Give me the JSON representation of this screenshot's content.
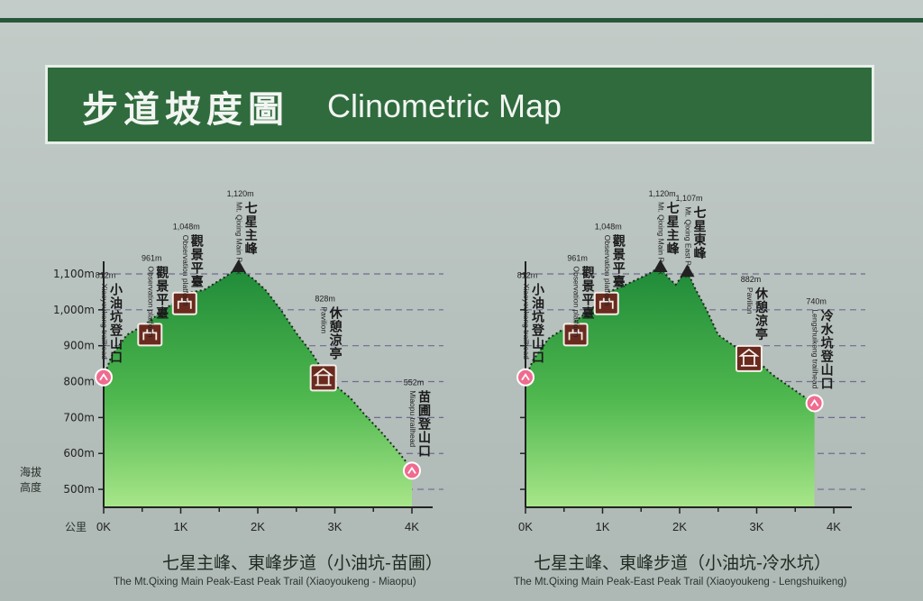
{
  "title": {
    "zh": "步道坡度圖",
    "en": "Clinometric Map"
  },
  "y_axis_title": "海拔高度",
  "x_axis_unit": "公里",
  "chart_data": [
    {
      "type": "area",
      "caption_zh": "七星主峰、東峰步道（小油坑-苗圃）",
      "caption_en": "The Mt.Qixing Main Peak-East Peak Trail (Xiaoyoukeng - Miaopu)",
      "x_tick_labels": [
        "0K",
        "1K",
        "2K",
        "3K",
        "4K"
      ],
      "y_tick_labels": [
        "500m",
        "600m",
        "700m",
        "800m",
        "900m",
        "1,000m",
        "1,100m"
      ],
      "xlim": [
        0,
        4.2
      ],
      "ylim": [
        450,
        1110
      ],
      "grid": true,
      "x": [
        0,
        0.1,
        0.3,
        0.55,
        0.78,
        0.95,
        1.1,
        1.3,
        1.45,
        1.6,
        1.7,
        1.75,
        1.82,
        1.95,
        2.1,
        2.3,
        2.5,
        2.7,
        2.85,
        3.0,
        3.2,
        3.4,
        3.6,
        3.8,
        3.95,
        4.0
      ],
      "y": [
        812,
        870,
        930,
        961,
        1000,
        1025,
        1048,
        1055,
        1075,
        1095,
        1110,
        1120,
        1105,
        1085,
        1055,
        1000,
        935,
        880,
        828,
        790,
        755,
        705,
        660,
        610,
        570,
        552
      ],
      "points": [
        {
          "x": 0.0,
          "y": 812,
          "name_zh": "小油坑登山口",
          "name_en": "Xiaoyoukeng trailhead",
          "elev": "812m",
          "icon": "trailhead-icon"
        },
        {
          "x": 0.6,
          "y": 961,
          "name_zh": "觀景平臺",
          "name_en": "Observation platform",
          "elev": "961m",
          "icon": "platform-icon"
        },
        {
          "x": 1.05,
          "y": 1048,
          "name_zh": "觀景平臺",
          "name_en": "Observation platform",
          "elev": "1,048m",
          "icon": "platform-icon"
        },
        {
          "x": 1.75,
          "y": 1120,
          "name_zh": "七星主峰",
          "name_en": "Mt. Qixing Main Peak",
          "elev": "1,120m",
          "icon": "peak-icon"
        },
        {
          "x": 2.85,
          "y": 828,
          "name_zh": "休憩涼亭",
          "name_en": "Pavilion",
          "elev": "828m",
          "icon": "pavilion-icon"
        },
        {
          "x": 4.0,
          "y": 552,
          "name_zh": "苗圃登山口",
          "name_en": "Miaopu trailhead",
          "elev": "552m",
          "icon": "trailhead-icon"
        }
      ]
    },
    {
      "type": "area",
      "caption_zh": "七星主峰、東峰步道（小油坑-冷水坑）",
      "caption_en": "The Mt.Qixing Main Peak-East Peak Trail (Xiaoyoukeng - Lengshuikeng)",
      "x_tick_labels": [
        "0K",
        "1K",
        "2K",
        "3K",
        "4K"
      ],
      "xlim": [
        0,
        4.2
      ],
      "ylim": [
        450,
        1110
      ],
      "grid": true,
      "x": [
        0,
        0.1,
        0.3,
        0.6,
        0.9,
        1.05,
        1.2,
        1.4,
        1.6,
        1.75,
        1.85,
        1.95,
        2.05,
        2.1,
        2.2,
        2.35,
        2.5,
        2.7,
        2.85,
        3.0,
        3.2,
        3.4,
        3.6,
        3.75
      ],
      "y": [
        812,
        860,
        920,
        961,
        1010,
        1048,
        1060,
        1080,
        1100,
        1120,
        1090,
        1070,
        1100,
        1107,
        1060,
        1000,
        930,
        900,
        882,
        860,
        820,
        790,
        760,
        740
      ],
      "points": [
        {
          "x": 0.0,
          "y": 812,
          "name_zh": "小油坑登山口",
          "name_en": "Xiaoyoukeng trailhead",
          "elev": "812m",
          "icon": "trailhead-icon"
        },
        {
          "x": 0.65,
          "y": 961,
          "name_zh": "觀景平臺",
          "name_en": "Observation platform",
          "elev": "961m",
          "icon": "platform-icon"
        },
        {
          "x": 1.05,
          "y": 1048,
          "name_zh": "觀景平臺",
          "name_en": "Observation platform",
          "elev": "1,048m",
          "icon": "platform-icon"
        },
        {
          "x": 1.75,
          "y": 1120,
          "name_zh": "七星主峰",
          "name_en": "Mt. Qixing Main Peak",
          "elev": "1,120m",
          "icon": "peak-icon"
        },
        {
          "x": 2.1,
          "y": 1107,
          "name_zh": "七星東峰",
          "name_en": "Mt. Qixing East Peak",
          "elev": "1,107m",
          "icon": "peak-icon"
        },
        {
          "x": 2.9,
          "y": 882,
          "name_zh": "休憩涼亭",
          "name_en": "Pavilion",
          "elev": "882m",
          "icon": "pavilion-icon"
        },
        {
          "x": 3.75,
          "y": 740,
          "name_zh": "冷水坑登山口",
          "name_en": "Lengshuikeng trailhead",
          "elev": "740m",
          "icon": "trailhead-icon"
        }
      ]
    }
  ],
  "colors": {
    "banner": "#2f6b3d",
    "fill_top": "#1f8a39",
    "fill_bottom": "#a8e68a",
    "icon": "#6a2a1e",
    "trailhead": "#f06b8f",
    "grid": "#6f6b8f"
  }
}
